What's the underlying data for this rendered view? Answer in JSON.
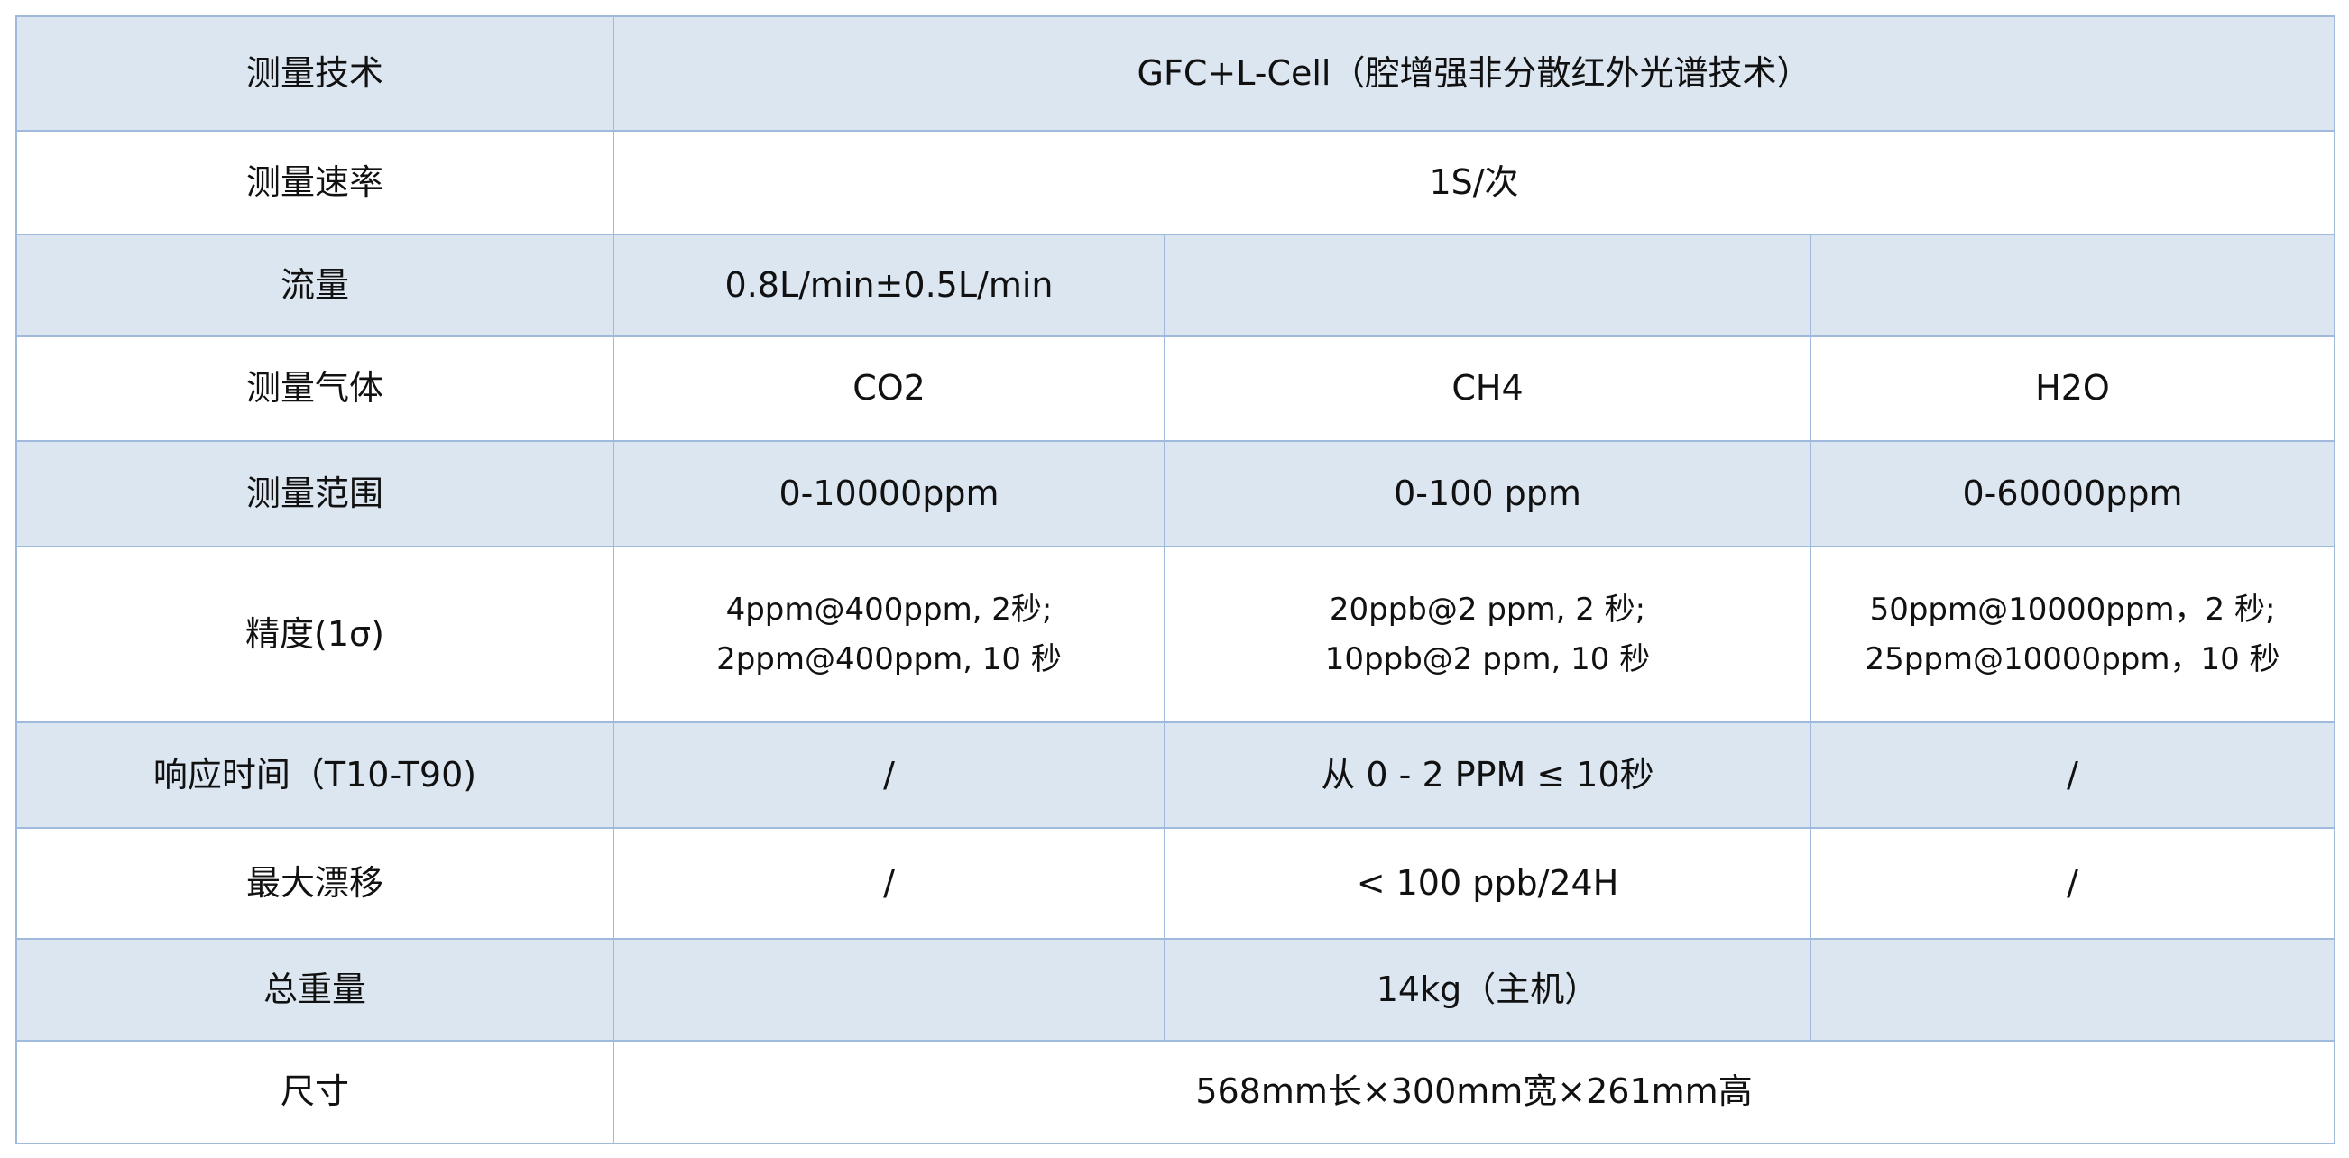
{
  "rows": [
    {
      "label": "测量技术",
      "value": "GFC+L-Cell（腔增强非分散红外光谱技术）"
    },
    {
      "label": "测量速率",
      "value": "1S/次"
    },
    {
      "label": "流量",
      "values": [
        "0.8L/min±0.5L/min",
        "",
        ""
      ]
    },
    {
      "label": "测量气体",
      "values": [
        "CO2",
        "CH4",
        "H2O"
      ]
    },
    {
      "label": "测量范围",
      "values": [
        "0-10000ppm",
        "0-100 ppm",
        "0-60000ppm"
      ]
    },
    {
      "label": "精度(1σ)",
      "values": [
        [
          "4ppm@400ppm, 2秒;",
          "2ppm@400ppm, 10 秒"
        ],
        [
          "20ppb@2 ppm, 2 秒;",
          "10ppb@2 ppm, 10 秒"
        ],
        [
          "50ppm@10000ppm，2 秒;",
          "25ppm@10000ppm，10 秒"
        ]
      ]
    },
    {
      "label": "响应时间（T10-T90)",
      "values": [
        "/",
        "从 0 - 2 PPM ≤ 10秒",
        "/"
      ]
    },
    {
      "label": "最大漂移",
      "values": [
        "/",
        "< 100 ppb/24H",
        "/"
      ]
    },
    {
      "label": "总重量",
      "values": [
        "",
        "14kg（主机）",
        ""
      ]
    },
    {
      "label": "尺寸",
      "value": "568mm长×300mm宽×261mm高"
    }
  ],
  "colors": {
    "shade": "#dce6f1",
    "border": "#9fbadd"
  }
}
